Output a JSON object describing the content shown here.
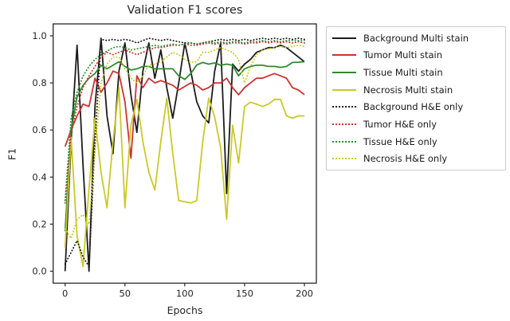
{
  "chart_data": {
    "type": "line",
    "title": "Validation F1 scores",
    "xlabel": "Epochs",
    "ylabel": "F1",
    "xlim": [
      0,
      200
    ],
    "ylim": [
      0.0,
      1.0
    ],
    "x_ticks": {
      "values": [
        0,
        50,
        100,
        150,
        200
      ],
      "labels": [
        "0",
        "50",
        "100",
        "150",
        "200"
      ]
    },
    "y_ticks": {
      "values": [
        0.0,
        0.2,
        0.4,
        0.6,
        0.8,
        1.0
      ],
      "labels": [
        "0.0",
        "0.2",
        "0.4",
        "0.6",
        "0.8",
        "1.0"
      ]
    },
    "grid": false,
    "legend_position": "outside-right",
    "epochs": [
      0,
      5,
      10,
      15,
      20,
      25,
      30,
      35,
      40,
      45,
      50,
      55,
      60,
      65,
      70,
      75,
      80,
      85,
      90,
      95,
      100,
      105,
      110,
      115,
      120,
      125,
      130,
      135,
      140,
      145,
      150,
      155,
      160,
      165,
      170,
      175,
      180,
      185,
      190,
      195,
      200
    ],
    "series": [
      {
        "name": "Background Multi stain",
        "color": "#1c1c1c",
        "style": "solid",
        "values": [
          0.0,
          0.55,
          0.96,
          0.45,
          0.0,
          0.7,
          0.99,
          0.66,
          0.5,
          0.85,
          0.97,
          0.75,
          0.59,
          0.85,
          0.97,
          0.82,
          0.94,
          0.78,
          0.65,
          0.8,
          0.97,
          0.85,
          0.72,
          0.66,
          0.63,
          0.85,
          0.97,
          0.33,
          0.88,
          0.85,
          0.88,
          0.9,
          0.93,
          0.94,
          0.95,
          0.95,
          0.96,
          0.95,
          0.93,
          0.91,
          0.89
        ]
      },
      {
        "name": "Tumor Multi stain",
        "color": "#cc3333",
        "style": "solid",
        "values": [
          0.53,
          0.6,
          0.66,
          0.71,
          0.7,
          0.82,
          0.76,
          0.8,
          0.85,
          0.84,
          0.72,
          0.48,
          0.83,
          0.78,
          0.82,
          0.8,
          0.81,
          0.8,
          0.79,
          0.77,
          0.785,
          0.8,
          0.79,
          0.77,
          0.78,
          0.8,
          0.8,
          0.82,
          0.78,
          0.75,
          0.78,
          0.8,
          0.82,
          0.82,
          0.83,
          0.84,
          0.83,
          0.82,
          0.78,
          0.77,
          0.75
        ]
      },
      {
        "name": "Tissue Multi stain",
        "color": "#2e8b2e",
        "style": "solid",
        "values": [
          0.17,
          0.6,
          0.74,
          0.79,
          0.82,
          0.84,
          0.875,
          0.86,
          0.875,
          0.89,
          0.87,
          0.855,
          0.86,
          0.87,
          0.87,
          0.86,
          0.86,
          0.86,
          0.86,
          0.83,
          0.815,
          0.84,
          0.876,
          0.887,
          0.88,
          0.885,
          0.875,
          0.88,
          0.875,
          0.83,
          0.86,
          0.87,
          0.875,
          0.875,
          0.87,
          0.87,
          0.866,
          0.87,
          0.887,
          0.888,
          0.89
        ]
      },
      {
        "name": "Necrosis Multi stain",
        "color": "#c9c929",
        "style": "solid",
        "values": [
          0.1,
          0.57,
          0.15,
          0.02,
          0.35,
          0.65,
          0.42,
          0.27,
          0.55,
          0.78,
          0.27,
          0.62,
          0.73,
          0.55,
          0.42,
          0.345,
          0.55,
          0.735,
          0.5,
          0.3,
          0.295,
          0.29,
          0.3,
          0.55,
          0.735,
          0.655,
          0.525,
          0.22,
          0.62,
          0.46,
          0.7,
          0.718,
          0.71,
          0.7,
          0.71,
          0.73,
          0.73,
          0.66,
          0.65,
          0.66,
          0.66
        ]
      },
      {
        "name": "Background H&E only",
        "color": "#1c1c1c",
        "style": "dotted",
        "values": [
          0.03,
          0.08,
          0.13,
          0.06,
          0.02,
          0.55,
          0.985,
          0.98,
          0.985,
          0.98,
          0.985,
          0.98,
          0.97,
          0.98,
          0.99,
          0.985,
          0.98,
          0.985,
          0.98,
          0.975,
          0.97,
          0.97,
          0.965,
          0.97,
          0.975,
          0.98,
          0.985,
          0.98,
          0.985,
          0.98,
          0.985,
          0.98,
          0.985,
          0.99,
          0.985,
          0.99,
          0.985,
          0.99,
          0.985,
          0.99,
          0.985
        ]
      },
      {
        "name": "Tumor H&E only",
        "color": "#cc3333",
        "style": "dotted",
        "values": [
          0.29,
          0.58,
          0.7,
          0.78,
          0.83,
          0.87,
          0.91,
          0.93,
          0.92,
          0.93,
          0.94,
          0.93,
          0.92,
          0.93,
          0.94,
          0.95,
          0.95,
          0.955,
          0.96,
          0.96,
          0.965,
          0.96,
          0.96,
          0.965,
          0.97,
          0.965,
          0.97,
          0.965,
          0.97,
          0.97,
          0.965,
          0.97,
          0.97,
          0.975,
          0.97,
          0.975,
          0.97,
          0.975,
          0.97,
          0.975,
          0.97
        ]
      },
      {
        "name": "Tissue H&E only",
        "color": "#2e8b2e",
        "style": "dotted",
        "values": [
          0.3,
          0.65,
          0.76,
          0.83,
          0.87,
          0.9,
          0.92,
          0.935,
          0.95,
          0.955,
          0.95,
          0.94,
          0.945,
          0.95,
          0.955,
          0.96,
          0.955,
          0.96,
          0.965,
          0.96,
          0.965,
          0.97,
          0.965,
          0.97,
          0.975,
          0.97,
          0.975,
          0.97,
          0.975,
          0.975,
          0.97,
          0.975,
          0.975,
          0.98,
          0.975,
          0.98,
          0.975,
          0.98,
          0.98,
          0.98,
          0.98
        ]
      },
      {
        "name": "Necrosis H&E only",
        "color": "#c9c929",
        "style": "dotted",
        "values": [
          0.18,
          0.14,
          0.22,
          0.24,
          0.2,
          0.5,
          0.8,
          0.88,
          0.91,
          0.91,
          0.86,
          0.82,
          0.8,
          0.83,
          0.875,
          0.88,
          0.89,
          0.91,
          0.93,
          0.92,
          0.9,
          0.887,
          0.89,
          0.93,
          0.93,
          0.94,
          0.95,
          0.94,
          0.93,
          0.9,
          0.8,
          0.87,
          0.92,
          0.94,
          0.945,
          0.95,
          0.955,
          0.95,
          0.955,
          0.96,
          0.955
        ]
      }
    ],
    "axis_color": "#262626",
    "background_color": "#ffffff"
  }
}
